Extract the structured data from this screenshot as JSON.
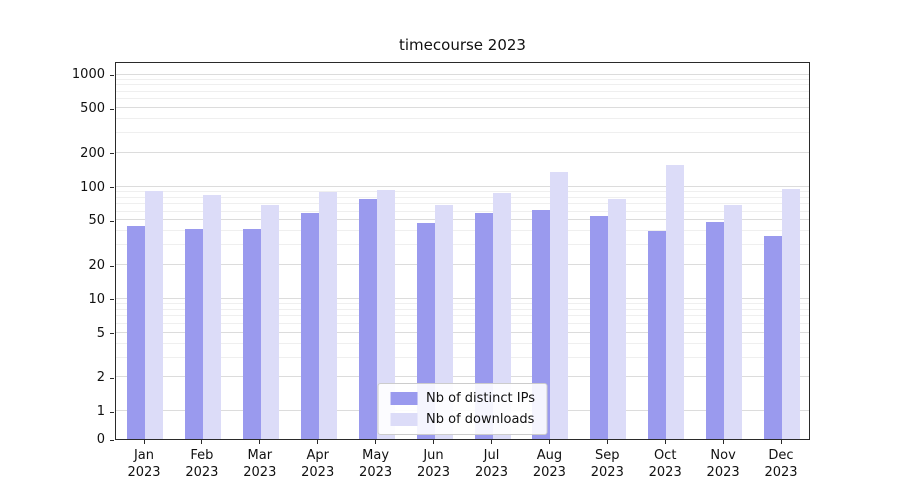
{
  "chart_data": {
    "type": "bar",
    "title": "timecourse 2023",
    "xlabel": "",
    "ylabel": "",
    "yscale": "symlog",
    "ylim": [
      0,
      1000
    ],
    "yticks": [
      0,
      1,
      2,
      5,
      10,
      20,
      50,
      100,
      200,
      500,
      1000
    ],
    "grid": true,
    "legend_position": "lower center",
    "categories": [
      "Jan 2023",
      "Feb 2023",
      "Mar 2023",
      "Apr 2023",
      "May 2023",
      "Jun 2023",
      "Jul 2023",
      "Aug 2023",
      "Sep 2023",
      "Oct 2023",
      "Nov 2023",
      "Dec 2023"
    ],
    "series": [
      {
        "name": "Nb of distinct IPs",
        "color": "#9a9aee",
        "values": [
          45,
          42,
          42,
          58,
          78,
          47,
          58,
          62,
          55,
          40,
          48,
          36
        ]
      },
      {
        "name": "Nb of downloads",
        "color": "#dcdcf8",
        "values": [
          92,
          85,
          68,
          90,
          93,
          68,
          88,
          135,
          78,
          155,
          68,
          95
        ]
      }
    ]
  }
}
